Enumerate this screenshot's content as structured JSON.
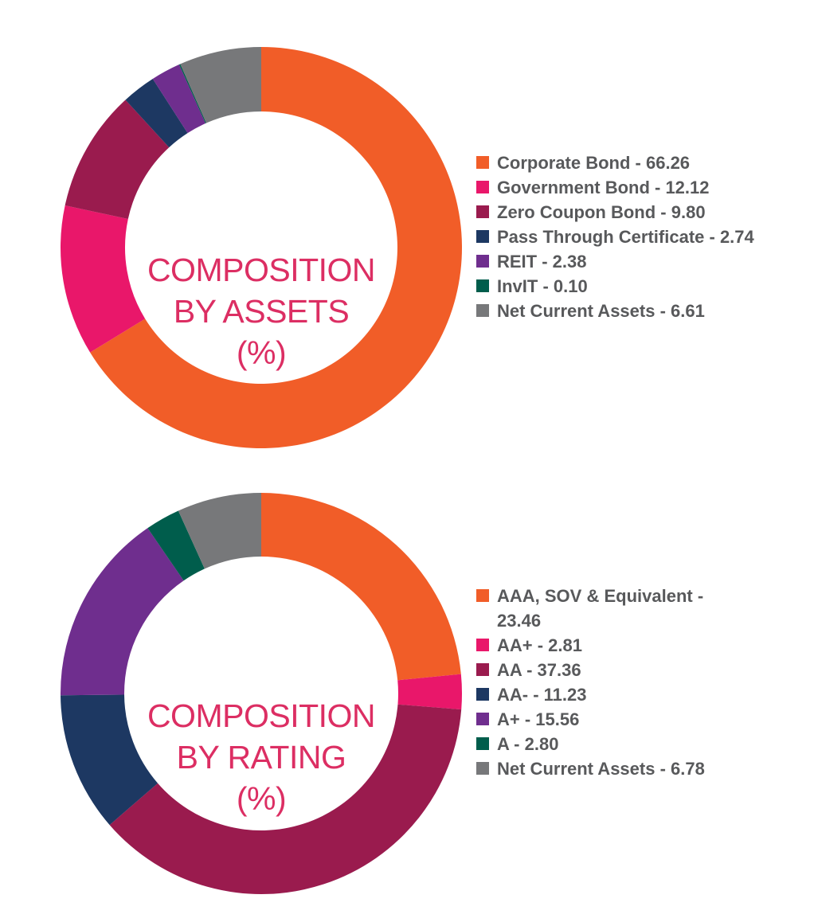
{
  "chart_data": [
    {
      "type": "pie",
      "variant": "donut",
      "title": "COMPOSITION BY ASSETS (%)",
      "title_lines": [
        "COMPOSITION",
        "BY ASSETS",
        "(%)"
      ],
      "start": "top",
      "direction": "clockwise",
      "legend_position": "right",
      "slices": [
        {
          "label": "Corporate Bond",
          "value": 66.26,
          "legend": "Corporate Bond - 66.26",
          "color": "#f15d28"
        },
        {
          "label": "Government Bond",
          "value": 12.12,
          "legend": "Government Bond - 12.12",
          "color": "#e9176a"
        },
        {
          "label": "Zero Coupon Bond",
          "value": 9.8,
          "legend": "Zero Coupon Bond - 9.80",
          "color": "#9a1b4e"
        },
        {
          "label": "Pass Through Certificate",
          "value": 2.74,
          "legend": "Pass Through Certificate - 2.74",
          "color": "#1d3862"
        },
        {
          "label": "REIT",
          "value": 2.38,
          "legend": "REIT - 2.38",
          "color": "#6f2e8e"
        },
        {
          "label": "InvIT",
          "value": 0.1,
          "legend": "InvIT - 0.10",
          "color": "#005d4c"
        },
        {
          "label": "Net Current Assets",
          "value": 6.61,
          "legend": "Net Current Assets - 6.61",
          "color": "#77787a"
        }
      ]
    },
    {
      "type": "pie",
      "variant": "donut",
      "title": "COMPOSITION BY RATING (%)",
      "title_lines": [
        "COMPOSITION",
        "BY RATING",
        "(%)"
      ],
      "start": "top",
      "direction": "clockwise",
      "legend_position": "right",
      "slices": [
        {
          "label": "AAA, SOV & Equivalent",
          "value": 23.46,
          "legend": "AAA, SOV & Equivalent - 23.46",
          "color": "#f15d28"
        },
        {
          "label": "AA+",
          "value": 2.81,
          "legend": "AA+ - 2.81",
          "color": "#e9176a"
        },
        {
          "label": "AA",
          "value": 37.36,
          "legend": "AA - 37.36",
          "color": "#9a1b4e"
        },
        {
          "label": "AA-",
          "value": 11.23,
          "legend": "AA- - 11.23",
          "color": "#1d3862"
        },
        {
          "label": "A+",
          "value": 15.56,
          "legend": "A+ - 15.56",
          "color": "#6f2e8e"
        },
        {
          "label": "A",
          "value": 2.8,
          "legend": "A - 2.80",
          "color": "#005d4c"
        },
        {
          "label": "Net Current Assets",
          "value": 6.78,
          "legend": "Net Current Assets - 6.78",
          "color": "#77787a"
        }
      ]
    }
  ]
}
